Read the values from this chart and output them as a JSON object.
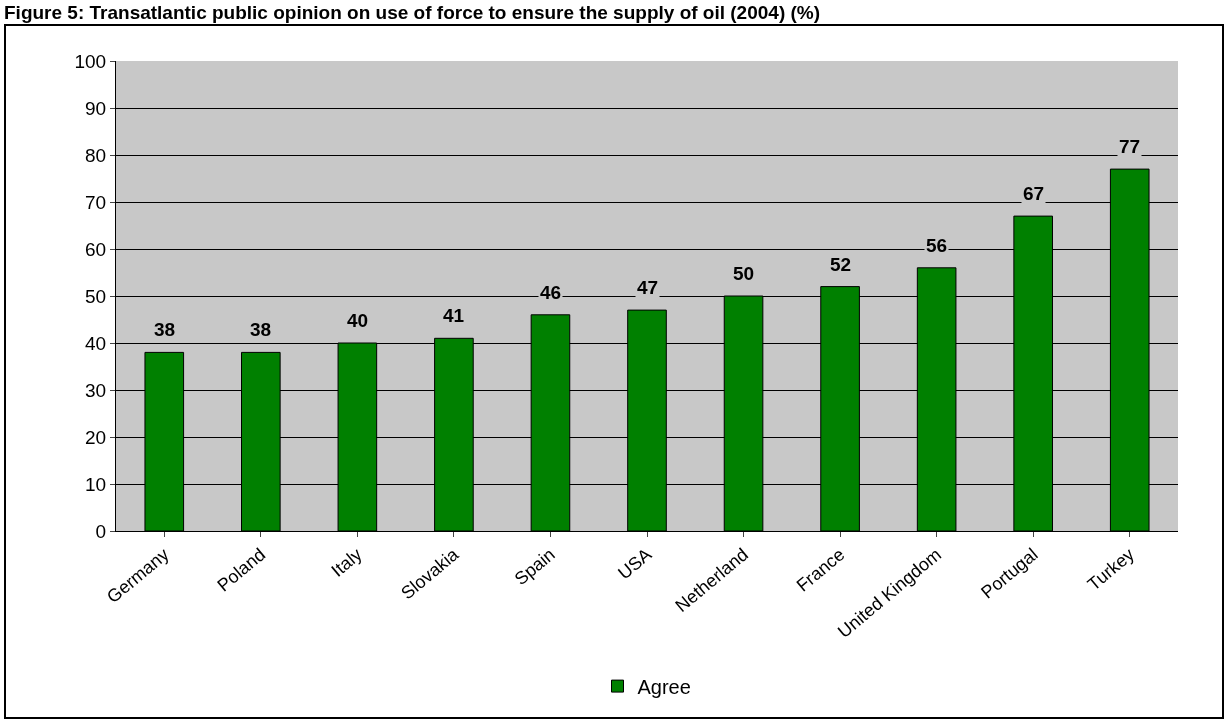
{
  "chart_data": {
    "type": "bar",
    "title": "Figure 5: Transatlantic public opinion on use of force to ensure the supply of oil (2004) (%)",
    "categories": [
      "Germany",
      "Poland",
      "Italy",
      "Slovakia",
      "Spain",
      "USA",
      "Netherland",
      "France",
      "United Kingdom",
      "Portugal",
      "Turkey"
    ],
    "series": [
      {
        "name": "Agree",
        "color": "#008000",
        "values": [
          38,
          38,
          40,
          41,
          46,
          47,
          50,
          52,
          56,
          67,
          77
        ]
      }
    ],
    "ylim": [
      0,
      100
    ],
    "yticks": [
      0,
      10,
      20,
      30,
      40,
      50,
      60,
      70,
      80,
      90,
      100
    ],
    "grid": "y",
    "legend": "bottom",
    "data_labels": true
  }
}
